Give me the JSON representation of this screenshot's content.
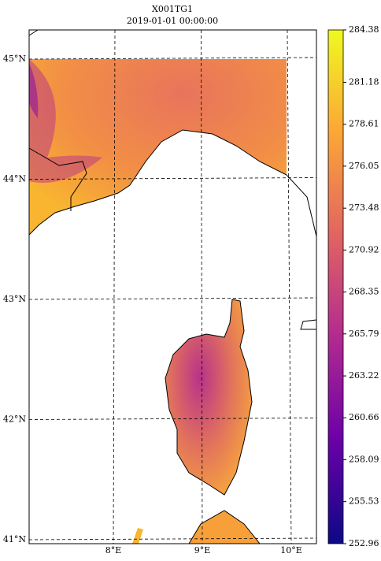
{
  "map": {
    "title": "X001TG1",
    "subtitle": "2019-01-01 00:00:00",
    "lat_ticks": [
      {
        "value": 45,
        "label": "45°N"
      },
      {
        "value": 44,
        "label": "44°N"
      },
      {
        "value": 43,
        "label": "43°N"
      },
      {
        "value": 42,
        "label": "42°N"
      },
      {
        "value": 41,
        "label": "41°N"
      }
    ],
    "lon_ticks": [
      {
        "value": 8,
        "label": "8°E"
      },
      {
        "value": 9,
        "label": "9°E"
      },
      {
        "value": 10,
        "label": "10°E"
      }
    ],
    "colorbar": {
      "lim": [
        252.96,
        284.38
      ],
      "ticks": [
        284.38,
        281.18,
        278.61,
        276.05,
        273.48,
        270.92,
        268.35,
        265.79,
        263.22,
        260.66,
        258.09,
        255.53,
        252.96
      ]
    }
  }
}
